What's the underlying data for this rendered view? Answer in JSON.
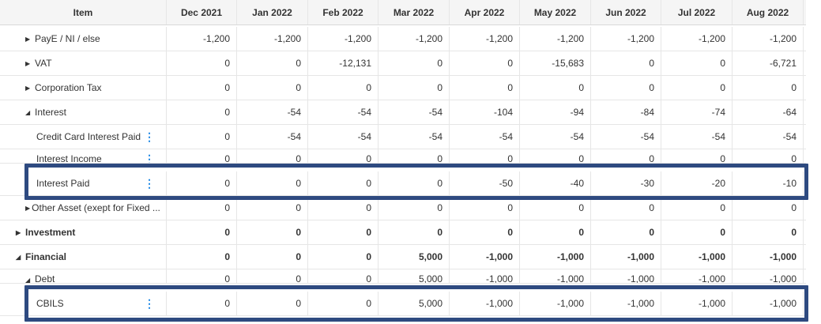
{
  "columns": {
    "item": "Item",
    "months": [
      "Dec 2021",
      "Jan 2022",
      "Feb 2022",
      "Mar 2022",
      "Apr 2022",
      "May 2022",
      "Jun 2022",
      "Jul 2022",
      "Aug 2022"
    ]
  },
  "rows": [
    {
      "label": "PayE / NI / else",
      "values": [
        "-1,200",
        "-1,200",
        "-1,200",
        "-1,200",
        "-1,200",
        "-1,200",
        "-1,200",
        "-1,200",
        "-1,200"
      ]
    },
    {
      "label": "VAT",
      "values": [
        "0",
        "0",
        "-12,131",
        "0",
        "0",
        "-15,683",
        "0",
        "0",
        "-6,721"
      ]
    },
    {
      "label": "Corporation Tax",
      "values": [
        "0",
        "0",
        "0",
        "0",
        "0",
        "0",
        "0",
        "0",
        "0"
      ]
    },
    {
      "label": "Interest",
      "values": [
        "0",
        "-54",
        "-54",
        "-54",
        "-104",
        "-94",
        "-84",
        "-74",
        "-64"
      ]
    },
    {
      "label": "Credit Card Interest Paid",
      "values": [
        "0",
        "-54",
        "-54",
        "-54",
        "-54",
        "-54",
        "-54",
        "-54",
        "-54"
      ]
    },
    {
      "label": "Interest Income",
      "values": [
        "0",
        "0",
        "0",
        "0",
        "0",
        "0",
        "0",
        "0",
        "0"
      ]
    },
    {
      "label": "Interest Paid",
      "values": [
        "0",
        "0",
        "0",
        "0",
        "-50",
        "-40",
        "-30",
        "-20",
        "-10"
      ]
    },
    {
      "label": "Other Asset (exept for Fixed ...",
      "values": [
        "0",
        "0",
        "0",
        "0",
        "0",
        "0",
        "0",
        "0",
        "0"
      ]
    },
    {
      "label": "Investment",
      "values": [
        "0",
        "0",
        "0",
        "0",
        "0",
        "0",
        "0",
        "0",
        "0"
      ]
    },
    {
      "label": "Financial",
      "values": [
        "0",
        "0",
        "0",
        "5,000",
        "-1,000",
        "-1,000",
        "-1,000",
        "-1,000",
        "-1,000"
      ]
    },
    {
      "label": "Debt",
      "values": [
        "0",
        "0",
        "0",
        "5,000",
        "-1,000",
        "-1,000",
        "-1,000",
        "-1,000",
        "-1,000"
      ]
    },
    {
      "label": "CBILS",
      "values": [
        "0",
        "0",
        "0",
        "5,000",
        "-1,000",
        "-1,000",
        "-1,000",
        "-1,000",
        "-1,000"
      ]
    }
  ],
  "icons": {
    "expand": "triangle-right-icon",
    "collapse": "triangle-down-icon",
    "menu": "kebab-menu-icon"
  },
  "colors": {
    "highlight_border": "#2e4a80",
    "menu_icon": "#1e88e5"
  }
}
